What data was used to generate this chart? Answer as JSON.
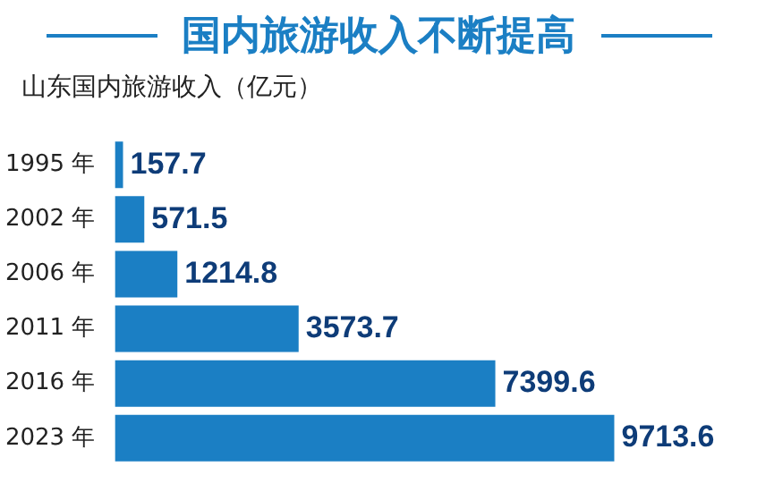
{
  "chart_data": {
    "type": "bar",
    "orientation": "horizontal",
    "title": "国内旅游收入不断提高",
    "subtitle": "山东国内旅游收入（亿元）",
    "categories": [
      "1995 年",
      "2002 年",
      "2006 年",
      "2011 年",
      "2016 年",
      "2023 年"
    ],
    "values": [
      157.7,
      571.5,
      1214.8,
      3573.7,
      7399.6,
      9713.6
    ],
    "color": "#1b7fc4",
    "data_labels": true
  }
}
